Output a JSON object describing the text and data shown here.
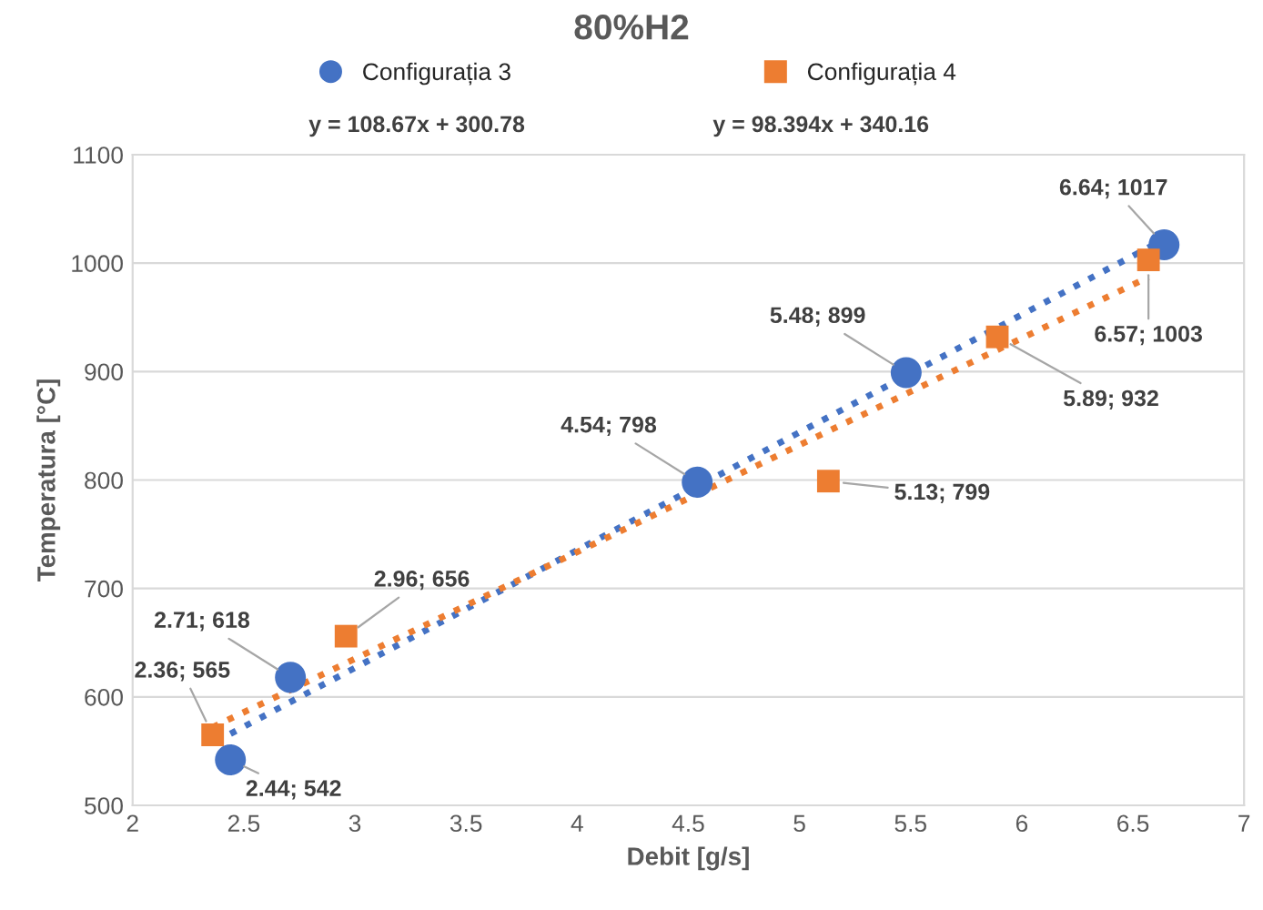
{
  "chart_data": {
    "type": "scatter",
    "title": "80%H2",
    "xlabel": "Debit [g/s]",
    "ylabel": "Temperatura [°C]",
    "xlim": [
      2,
      7
    ],
    "xticks": [
      2,
      2.5,
      3,
      3.5,
      4,
      4.5,
      5,
      5.5,
      6,
      6.5,
      7
    ],
    "ylim": [
      500,
      1100
    ],
    "yticks": [
      500,
      600,
      700,
      800,
      900,
      1000,
      1100
    ],
    "grid": "y",
    "legend": "top",
    "annotations": [
      "y = 108.67x + 300.78",
      "y = 98.394x + 340.16"
    ],
    "series": [
      {
        "name": "Configurația 3",
        "marker": "circle",
        "color": "#4472c4",
        "x": [
          2.44,
          2.71,
          4.54,
          5.48,
          6.64
        ],
        "values": [
          542,
          618,
          798,
          899,
          1017
        ],
        "value_labels": [
          "2.44; 542",
          "2.71; 618",
          "4.54; 798",
          "5.48; 899",
          "6.64; 1017"
        ]
      },
      {
        "name": "Configurația 4",
        "marker": "square",
        "color": "#ed7d31",
        "x": [
          2.36,
          2.96,
          5.13,
          5.89,
          6.57
        ],
        "values": [
          565,
          656,
          799,
          932,
          1003
        ],
        "value_labels": [
          "2.36; 565",
          "2.96; 656",
          "5.13; 799",
          "5.89; 932",
          "6.57; 1003"
        ]
      },
      {
        "type": "line",
        "line_style": "dotted",
        "color": "#4472c4",
        "x": [
          2.44,
          6.64
        ],
        "values": [
          566,
          1022
        ]
      },
      {
        "type": "line",
        "line_style": "dotted",
        "color": "#ed7d31",
        "x": [
          2.36,
          6.57
        ],
        "values": [
          572,
          987
        ]
      }
    ]
  }
}
